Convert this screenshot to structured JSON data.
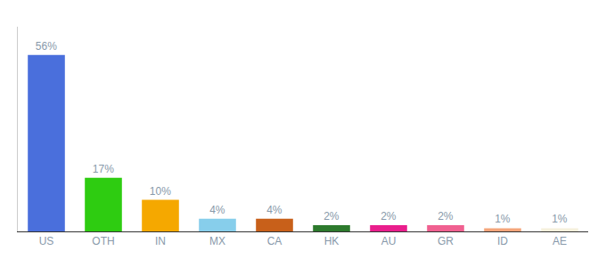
{
  "chart_data": {
    "type": "bar",
    "categories": [
      "US",
      "OTH",
      "IN",
      "MX",
      "CA",
      "HK",
      "AU",
      "GR",
      "ID",
      "AE"
    ],
    "values": [
      56,
      17,
      10,
      4,
      4,
      2,
      2,
      2,
      1,
      1
    ],
    "value_labels": [
      "56%",
      "17%",
      "10%",
      "4%",
      "4%",
      "2%",
      "2%",
      "2%",
      "1%",
      "1%"
    ],
    "colors": [
      "#4a6fdc",
      "#2ecc11",
      "#f5a800",
      "#87ceeb",
      "#c8601a",
      "#2d7a2d",
      "#e91e8c",
      "#f06090",
      "#f4a57a",
      "#f5f0dc"
    ],
    "ylim": [
      0,
      65
    ],
    "data_labels": true,
    "tick_labels": "x",
    "grid": false
  }
}
